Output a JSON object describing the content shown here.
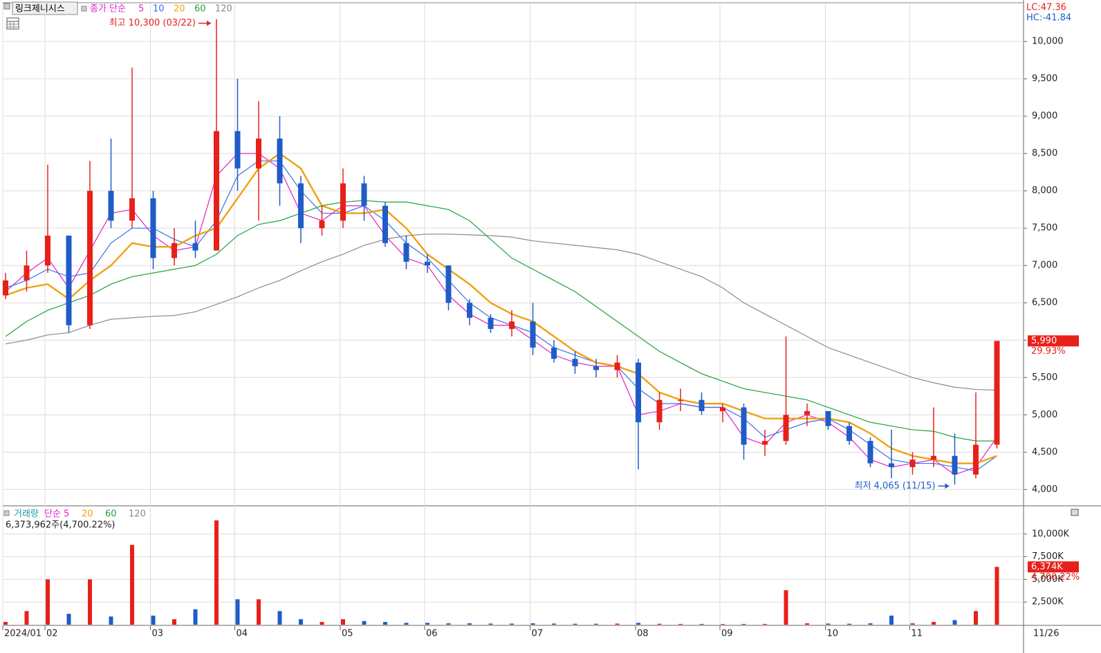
{
  "chart_data": [
    {
      "type": "candlestick",
      "title": "링크제니시스",
      "legend_prefix": "종가 단순",
      "categories": [
        "2024/01",
        null,
        "02",
        null,
        null,
        null,
        null,
        "03",
        null,
        null,
        null,
        "04",
        null,
        null,
        null,
        null,
        "05",
        null,
        null,
        null,
        "06",
        null,
        null,
        null,
        null,
        "07",
        null,
        null,
        null,
        null,
        "08",
        null,
        null,
        null,
        "09",
        null,
        null,
        null,
        null,
        "10",
        null,
        null,
        null,
        "11",
        null,
        null,
        null,
        null
      ],
      "open": [
        6600,
        6800,
        7000,
        7400,
        6200,
        8000,
        7600,
        7900,
        7100,
        7300,
        7200,
        8800,
        8300,
        8700,
        8100,
        7500,
        7600,
        8100,
        7800,
        7300,
        7050,
        7000,
        6500,
        6300,
        6150,
        6250,
        5900,
        5750,
        5650,
        5600,
        5700,
        4900,
        5200,
        5200,
        5050,
        5100,
        4600,
        4650,
        5000,
        5050,
        4850,
        4650,
        4350,
        4300,
        4400,
        4450,
        4200,
        4600
      ],
      "high": [
        6900,
        7200,
        8350,
        7400,
        8400,
        8700,
        9650,
        8000,
        7500,
        7600,
        10300,
        9500,
        9200,
        9000,
        8200,
        7800,
        8300,
        8200,
        7850,
        7400,
        7150,
        7000,
        6550,
        6350,
        6400,
        6500,
        6000,
        5850,
        5750,
        5800,
        5750,
        5300,
        5350,
        5300,
        5150,
        5150,
        4800,
        6050,
        5150,
        5050,
        4900,
        4700,
        4800,
        4500,
        5100,
        4750,
        5300,
        5990
      ],
      "low": [
        6550,
        6650,
        6900,
        6100,
        6150,
        7500,
        7500,
        6950,
        7000,
        7100,
        7200,
        8000,
        7600,
        7800,
        7300,
        7400,
        7500,
        7600,
        7250,
        6950,
        6900,
        6400,
        6200,
        6100,
        6050,
        5800,
        5700,
        5550,
        5500,
        5500,
        4270,
        4800,
        5050,
        5000,
        4900,
        4400,
        4450,
        4600,
        4850,
        4800,
        4600,
        4300,
        4150,
        4200,
        4300,
        4065,
        4150,
        4550
      ],
      "close": [
        6800,
        7000,
        7400,
        6200,
        8000,
        7600,
        7900,
        7100,
        7300,
        7200,
        8800,
        8300,
        8700,
        8100,
        7500,
        7600,
        8100,
        7800,
        7300,
        7050,
        7000,
        6500,
        6300,
        6150,
        6250,
        5900,
        5750,
        5650,
        5600,
        5700,
        4900,
        5200,
        5200,
        5050,
        5100,
        4600,
        4650,
        5000,
        5050,
        4850,
        4650,
        4350,
        4300,
        4400,
        4450,
        4200,
        4600,
        5990
      ],
      "up_color": "#e8201a",
      "down_color": "#1f5cc8",
      "series": [
        {
          "name": "5",
          "color": "#e020c8",
          "values": [
            6650,
            6900,
            7100,
            6700,
            7200,
            7700,
            7750,
            7400,
            7200,
            7250,
            8200,
            8500,
            8500,
            8300,
            7700,
            7600,
            7800,
            7800,
            7400,
            7100,
            7000,
            6600,
            6350,
            6200,
            6200,
            6000,
            5800,
            5700,
            5650,
            5650,
            5000,
            5050,
            5150,
            5100,
            5100,
            4700,
            4600,
            4900,
            5000,
            4900,
            4700,
            4400,
            4300,
            4350,
            4400,
            4200,
            4300,
            4700
          ]
        },
        {
          "name": "10",
          "color": "#3a6ee8",
          "values": [
            6700,
            6800,
            6950,
            6850,
            6900,
            7300,
            7500,
            7500,
            7350,
            7250,
            7600,
            8200,
            8400,
            8400,
            8000,
            7700,
            7700,
            7800,
            7600,
            7300,
            7100,
            6800,
            6500,
            6300,
            6200,
            6100,
            5900,
            5800,
            5700,
            5650,
            5350,
            5150,
            5150,
            5100,
            5100,
            4950,
            4700,
            4800,
            4900,
            4950,
            4800,
            4600,
            4400,
            4350,
            4350,
            4300,
            4250,
            4450
          ]
        },
        {
          "name": "20",
          "color": "#f0a010",
          "values": [
            6600,
            6700,
            6750,
            6550,
            6800,
            7000,
            7300,
            7250,
            7250,
            7400,
            7500,
            7900,
            8300,
            8500,
            8300,
            7800,
            7700,
            7700,
            7750,
            7500,
            7150,
            6950,
            6750,
            6500,
            6350,
            6250,
            6050,
            5850,
            5700,
            5650,
            5550,
            5300,
            5200,
            5150,
            5150,
            5050,
            4950,
            4950,
            4950,
            4950,
            4900,
            4750,
            4550,
            4450,
            4400,
            4350,
            4350,
            4450
          ]
        },
        {
          "name": "60",
          "color": "#22a03a",
          "values": [
            6050,
            6250,
            6400,
            6500,
            6600,
            6750,
            6850,
            6900,
            6950,
            7000,
            7150,
            7400,
            7550,
            7600,
            7700,
            7800,
            7850,
            7870,
            7850,
            7850,
            7800,
            7750,
            7600,
            7350,
            7100,
            6950,
            6800,
            6650,
            6450,
            6250,
            6050,
            5850,
            5700,
            5550,
            5450,
            5350,
            5300,
            5250,
            5200,
            5100,
            5000,
            4900,
            4850,
            4800,
            4780,
            4700,
            4650,
            4650
          ]
        },
        {
          "name": "120",
          "color": "#8a8a8a",
          "values": [
            5950,
            6000,
            6070,
            6100,
            6200,
            6280,
            6300,
            6320,
            6330,
            6380,
            6480,
            6580,
            6700,
            6800,
            6930,
            7050,
            7150,
            7270,
            7350,
            7400,
            7420,
            7420,
            7410,
            7400,
            7380,
            7330,
            7300,
            7270,
            7240,
            7210,
            7150,
            7050,
            6950,
            6850,
            6700,
            6500,
            6350,
            6200,
            6050,
            5900,
            5800,
            5700,
            5600,
            5500,
            5430,
            5370,
            5340,
            5330
          ]
        }
      ],
      "ylim": [
        3800,
        10500
      ],
      "yticks": [
        {
          "value": 4000,
          "label": "4,000"
        },
        {
          "value": 4500,
          "label": "4,500"
        },
        {
          "value": 5000,
          "label": "5,000"
        },
        {
          "value": 5500,
          "label": "5,500"
        },
        {
          "value": 6000,
          "label": "6,000"
        },
        {
          "value": 6500,
          "label": "6,500"
        },
        {
          "value": 7000,
          "label": "7,000"
        },
        {
          "value": 7500,
          "label": "7,500"
        },
        {
          "value": 8000,
          "label": "8,000"
        },
        {
          "value": 8500,
          "label": "8,500"
        },
        {
          "value": 9000,
          "label": "9,000"
        },
        {
          "value": 9500,
          "label": "9,500"
        },
        {
          "value": 10000,
          "label": "10,000"
        }
      ],
      "grid": true,
      "high_annotation": "최고 10,300 (03/22)",
      "low_annotation": "최저 4,065 (11/15)",
      "stats": [
        "LC:47.36",
        "HC:-41.84"
      ],
      "last_label": "5,990",
      "last_change": "29.93%",
      "last_date_label": "11/26"
    },
    {
      "type": "bar",
      "legend": [
        {
          "text": "거래량",
          "color": "#1a9aa0"
        },
        {
          "text": "단순 5",
          "color": "#e020c8"
        },
        {
          "text": "20",
          "color": "#f0a010"
        },
        {
          "text": "60",
          "color": "#22a03a"
        },
        {
          "text": "120",
          "color": "#8a8a8a"
        }
      ],
      "info": "6,373,962주(4,700.22%)",
      "values": [
        300,
        1500,
        5000,
        1200,
        5000,
        900,
        8800,
        1000,
        600,
        1700,
        11500,
        2800,
        2800,
        1500,
        600,
        300,
        600,
        400,
        300,
        200,
        200,
        150,
        150,
        120,
        120,
        150,
        120,
        100,
        100,
        120,
        200,
        100,
        80,
        80,
        70,
        80,
        80,
        3800,
        150,
        120,
        100,
        150,
        1000,
        150,
        300,
        500,
        1500,
        6374
      ],
      "ylim": [
        0,
        12500
      ],
      "yticks": [
        {
          "value": 2500,
          "label": "2,500K"
        },
        {
          "value": 5000,
          "label": "5,000K"
        },
        {
          "value": 7500,
          "label": "7,500K"
        },
        {
          "value": 10000,
          "label": "10,000K"
        }
      ],
      "grid": true,
      "last_label": "6,374K",
      "last_change": "4,700.22%"
    }
  ]
}
